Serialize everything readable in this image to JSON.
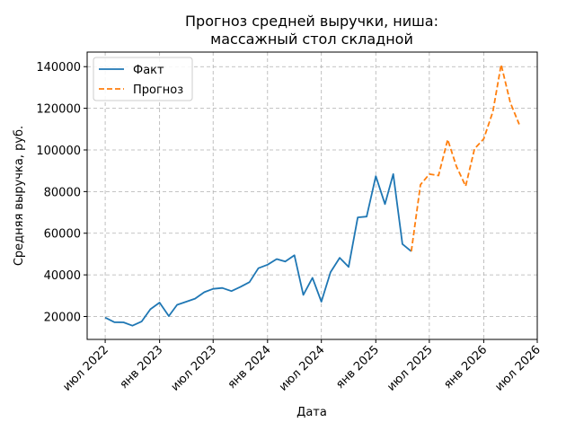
{
  "chart_data": {
    "type": "line",
    "title_lines": [
      "Прогноз средней выручки, ниша:",
      "массажный стол складной"
    ],
    "xlabel": "Дата",
    "ylabel": "Средняя выручка, руб.",
    "x_ticks": [
      {
        "date": "2022-07-01",
        "label": "июл 2022"
      },
      {
        "date": "2023-01-01",
        "label": "янв 2023"
      },
      {
        "date": "2023-07-01",
        "label": "июл 2023"
      },
      {
        "date": "2024-01-01",
        "label": "янв 2024"
      },
      {
        "date": "2024-07-01",
        "label": "июл 2024"
      },
      {
        "date": "2025-01-01",
        "label": "янв 2025"
      },
      {
        "date": "2025-07-01",
        "label": "июл 2025"
      },
      {
        "date": "2026-01-01",
        "label": "янв 2026"
      },
      {
        "date": "2026-07-01",
        "label": "июл 2026"
      }
    ],
    "y_ticks": [
      20000,
      40000,
      60000,
      80000,
      100000,
      120000,
      140000
    ],
    "xlim": [
      "2022-05-01",
      "2026-07-01"
    ],
    "ylim": [
      9000,
      147000
    ],
    "grid": true,
    "legend_position": "top-left",
    "series": [
      {
        "name": "Факт",
        "color": "#1f77b4",
        "style": "solid",
        "points": [
          [
            "2022-07-01",
            19500
          ],
          [
            "2022-08-01",
            17300
          ],
          [
            "2022-09-01",
            17200
          ],
          [
            "2022-10-01",
            15600
          ],
          [
            "2022-11-01",
            17600
          ],
          [
            "2022-12-01",
            23500
          ],
          [
            "2023-01-01",
            26700
          ],
          [
            "2023-02-01",
            20200
          ],
          [
            "2023-03-01",
            25600
          ],
          [
            "2023-04-01",
            27100
          ],
          [
            "2023-05-01",
            28600
          ],
          [
            "2023-06-01",
            31700
          ],
          [
            "2023-07-01",
            33300
          ],
          [
            "2023-08-01",
            33700
          ],
          [
            "2023-09-01",
            32200
          ],
          [
            "2023-10-01",
            34200
          ],
          [
            "2023-11-01",
            36500
          ],
          [
            "2023-12-01",
            43200
          ],
          [
            "2024-01-01",
            44900
          ],
          [
            "2024-02-01",
            47600
          ],
          [
            "2024-03-01",
            46400
          ],
          [
            "2024-04-01",
            49400
          ],
          [
            "2024-05-01",
            30400
          ],
          [
            "2024-06-01",
            38600
          ],
          [
            "2024-07-01",
            27100
          ],
          [
            "2024-08-01",
            41300
          ],
          [
            "2024-09-01",
            48200
          ],
          [
            "2024-10-01",
            43800
          ],
          [
            "2024-11-01",
            67600
          ],
          [
            "2024-12-01",
            68000
          ],
          [
            "2025-01-01",
            87400
          ],
          [
            "2025-02-01",
            74000
          ],
          [
            "2025-03-01",
            88400
          ],
          [
            "2025-04-01",
            54800
          ],
          [
            "2025-05-01",
            51300
          ]
        ]
      },
      {
        "name": "Прогноз",
        "color": "#ff7f0e",
        "style": "dashed",
        "points": [
          [
            "2025-05-01",
            51300
          ],
          [
            "2025-06-01",
            83300
          ],
          [
            "2025-07-01",
            88400
          ],
          [
            "2025-08-01",
            87700
          ],
          [
            "2025-09-01",
            105000
          ],
          [
            "2025-10-01",
            92000
          ],
          [
            "2025-11-01",
            82600
          ],
          [
            "2025-12-01",
            100600
          ],
          [
            "2026-01-01",
            105300
          ],
          [
            "2026-02-01",
            118400
          ],
          [
            "2026-03-01",
            141000
          ],
          [
            "2026-04-01",
            122700
          ],
          [
            "2026-05-01",
            112300
          ]
        ]
      }
    ]
  }
}
